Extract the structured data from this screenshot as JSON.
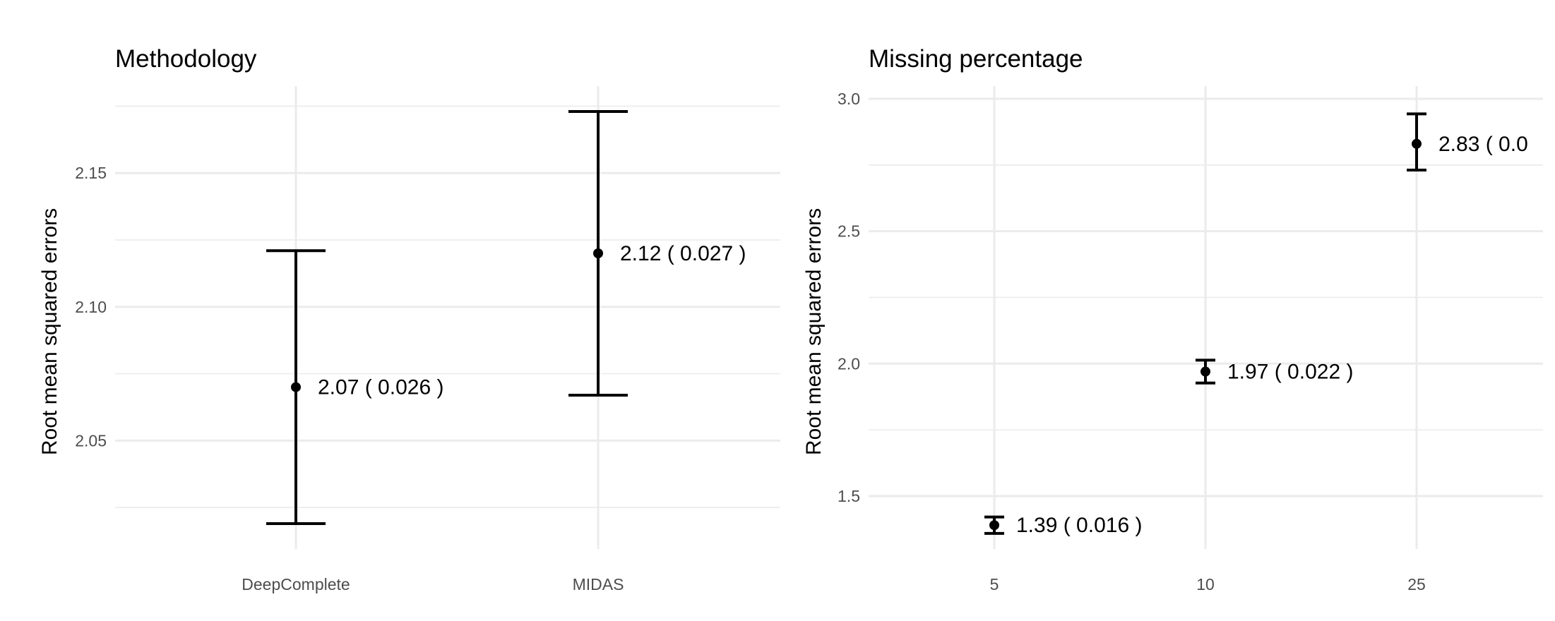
{
  "chart_data": [
    {
      "type": "errorbar",
      "title": "Methodology",
      "ylabel": "Root mean squared errors",
      "xlabel": "",
      "categories": [
        "DeepComplete",
        "MIDAS"
      ],
      "points": [
        {
          "x": "DeepComplete",
          "y": 2.07,
          "ymin": 2.019,
          "ymax": 2.121,
          "label": "2.07  ( 0.026 )"
        },
        {
          "x": "MIDAS",
          "y": 2.12,
          "ymin": 2.067,
          "ymax": 2.173,
          "label": "2.12  ( 0.027 )"
        }
      ],
      "yticks": [
        2.05,
        2.1,
        2.15
      ],
      "ytick_labels": [
        "2.05",
        "2.10",
        "2.15"
      ],
      "ylim": [
        2.0095,
        2.1825
      ],
      "grid": true
    },
    {
      "type": "errorbar",
      "title": "Missing percentage",
      "ylabel": "Root mean squared errors",
      "xlabel": "",
      "categories": [
        "5",
        "10",
        "25"
      ],
      "points": [
        {
          "x": "5",
          "y": 1.39,
          "ymin": 1.359,
          "ymax": 1.421,
          "label": "1.39  ( 0.016 )"
        },
        {
          "x": "10",
          "y": 1.97,
          "ymin": 1.927,
          "ymax": 2.013,
          "label": "1.97  ( 0.022 )"
        },
        {
          "x": "25",
          "y": 2.83,
          "ymin": 2.731,
          "ymax": 2.943,
          "label": "2.83  ( 0.0"
        }
      ],
      "yticks": [
        1.5,
        2.0,
        2.5,
        3.0
      ],
      "ytick_labels": [
        "1.5",
        "2.0",
        "2.5",
        "3.0"
      ],
      "ylim": [
        1.3,
        3.048
      ],
      "grid": true
    }
  ]
}
